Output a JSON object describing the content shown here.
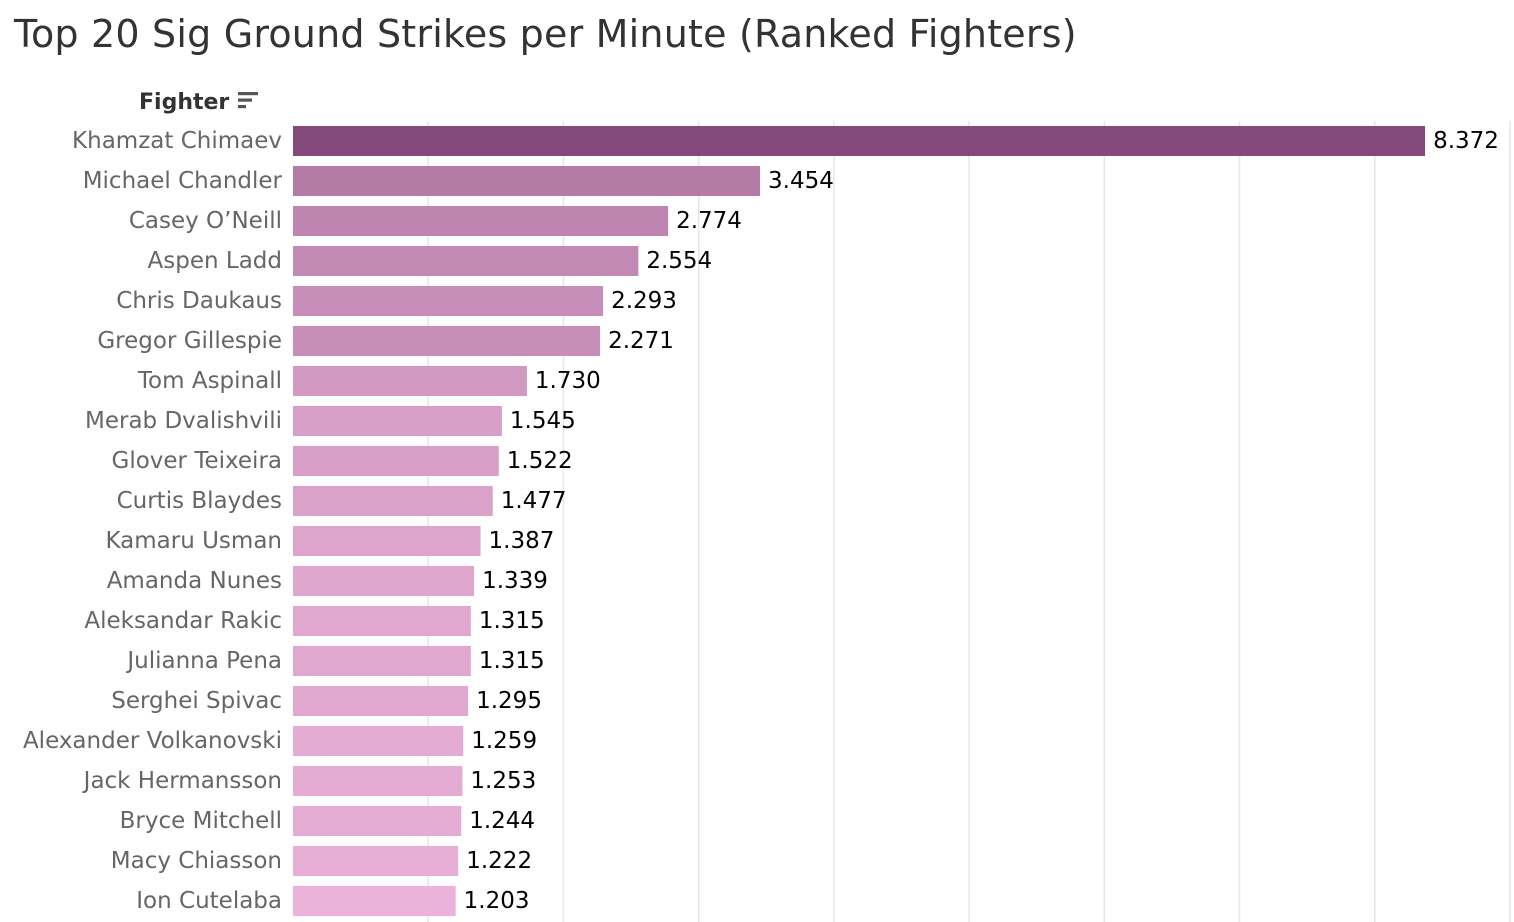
{
  "chart_data": {
    "type": "bar",
    "orientation": "horizontal",
    "title": "Top 20 Sig Ground Strikes per Minute (Ranked Fighters)",
    "row_header": "Fighter",
    "sort": "descending",
    "xlim": [
      0,
      9
    ],
    "grid": true,
    "categories": [
      "Khamzat Chimaev",
      "Michael Chandler",
      "Casey O’Neill",
      "Aspen Ladd",
      "Chris Daukaus",
      "Gregor Gillespie",
      "Tom Aspinall",
      "Merab Dvalishvili",
      "Glover Teixeira",
      "Curtis Blaydes",
      "Kamaru Usman",
      "Amanda Nunes",
      "Aleksandar Rakic",
      "Julianna Pena",
      "Serghei Spivac",
      "Alexander Volkanovski",
      "Jack Hermansson",
      "Bryce Mitchell",
      "Macy Chiasson",
      "Ion Cutelaba"
    ],
    "values": [
      8.372,
      3.454,
      2.774,
      2.554,
      2.293,
      2.271,
      1.73,
      1.545,
      1.522,
      1.477,
      1.387,
      1.339,
      1.315,
      1.315,
      1.295,
      1.259,
      1.253,
      1.244,
      1.222,
      1.203
    ],
    "value_labels": [
      "8.372",
      "3.454",
      "2.774",
      "2.554",
      "2.293",
      "2.271",
      "1.730",
      "1.545",
      "1.522",
      "1.477",
      "1.387",
      "1.339",
      "1.315",
      "1.315",
      "1.295",
      "1.259",
      "1.253",
      "1.244",
      "1.222",
      "1.203"
    ],
    "color_scale": {
      "low": "#ebb3d9",
      "high": "#834a7b"
    }
  },
  "colors": {
    "title": "#333333",
    "category_label": "#666666",
    "value_label": "#000000",
    "gridline": "#e6e6e6",
    "header": "#333333"
  },
  "icons": {
    "sort": "sort-descending-icon"
  }
}
